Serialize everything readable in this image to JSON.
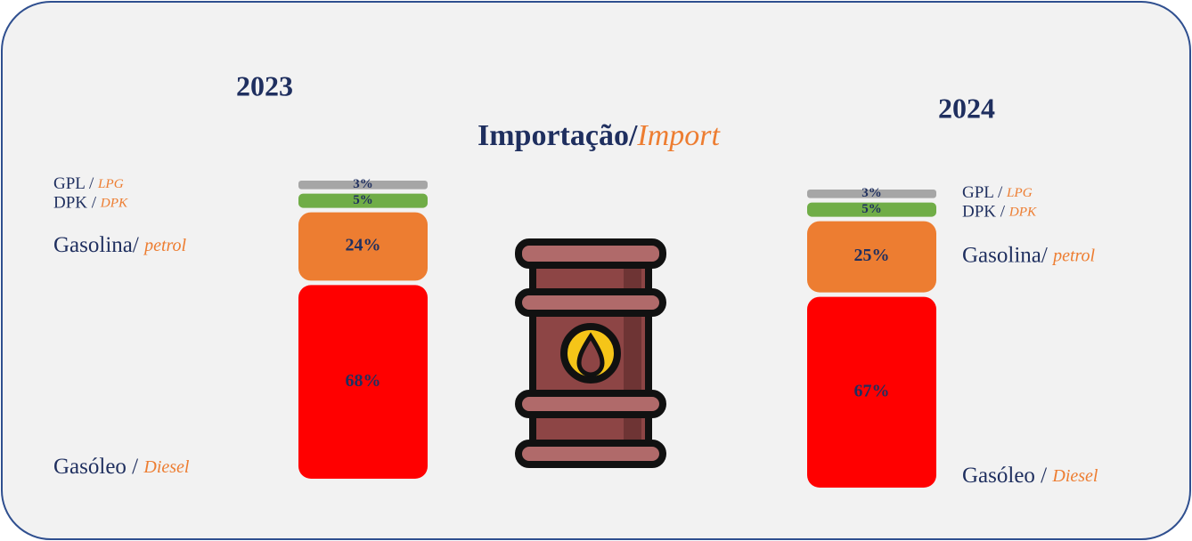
{
  "title": [
    "Importação/",
    "Import"
  ],
  "chart_data": [
    {
      "type": "stacked-bar",
      "title": "2023",
      "series": [
        {
          "name": [
            "GPL /",
            "LPG"
          ],
          "color": "#a6a6a6",
          "values": [
            3
          ],
          "value_labels": [
            "3%"
          ]
        },
        {
          "name": [
            "DPK /",
            "DPK"
          ],
          "color": "#70ad47",
          "values": [
            5
          ],
          "value_labels": [
            "5%"
          ]
        },
        {
          "name": [
            "Gasolina/",
            "petrol"
          ],
          "color": "#ed7d31",
          "values": [
            24
          ],
          "value_labels": [
            "24%"
          ]
        },
        {
          "name": [
            "Gasóleo /",
            "Diesel"
          ],
          "color": "#ff0000",
          "values": [
            68
          ],
          "value_labels": [
            "68%"
          ]
        }
      ],
      "legend": "left"
    },
    {
      "type": "stacked-bar",
      "title": "2024",
      "series": [
        {
          "name": [
            "GPL /",
            "LPG"
          ],
          "color": "#a6a6a6",
          "values": [
            3
          ],
          "value_labels": [
            "3%"
          ]
        },
        {
          "name": [
            "DPK /",
            "DPK"
          ],
          "color": "#70ad47",
          "values": [
            5
          ],
          "value_labels": [
            "5%"
          ]
        },
        {
          "name": [
            "Gasolina/",
            "petrol"
          ],
          "color": "#ed7d31",
          "values": [
            25
          ],
          "value_labels": [
            "25%"
          ]
        },
        {
          "name": [
            "Gasóleo /",
            "Diesel"
          ],
          "color": "#ff0000",
          "values": [
            67
          ],
          "value_labels": [
            "67%"
          ]
        }
      ],
      "legend": "right"
    }
  ]
}
